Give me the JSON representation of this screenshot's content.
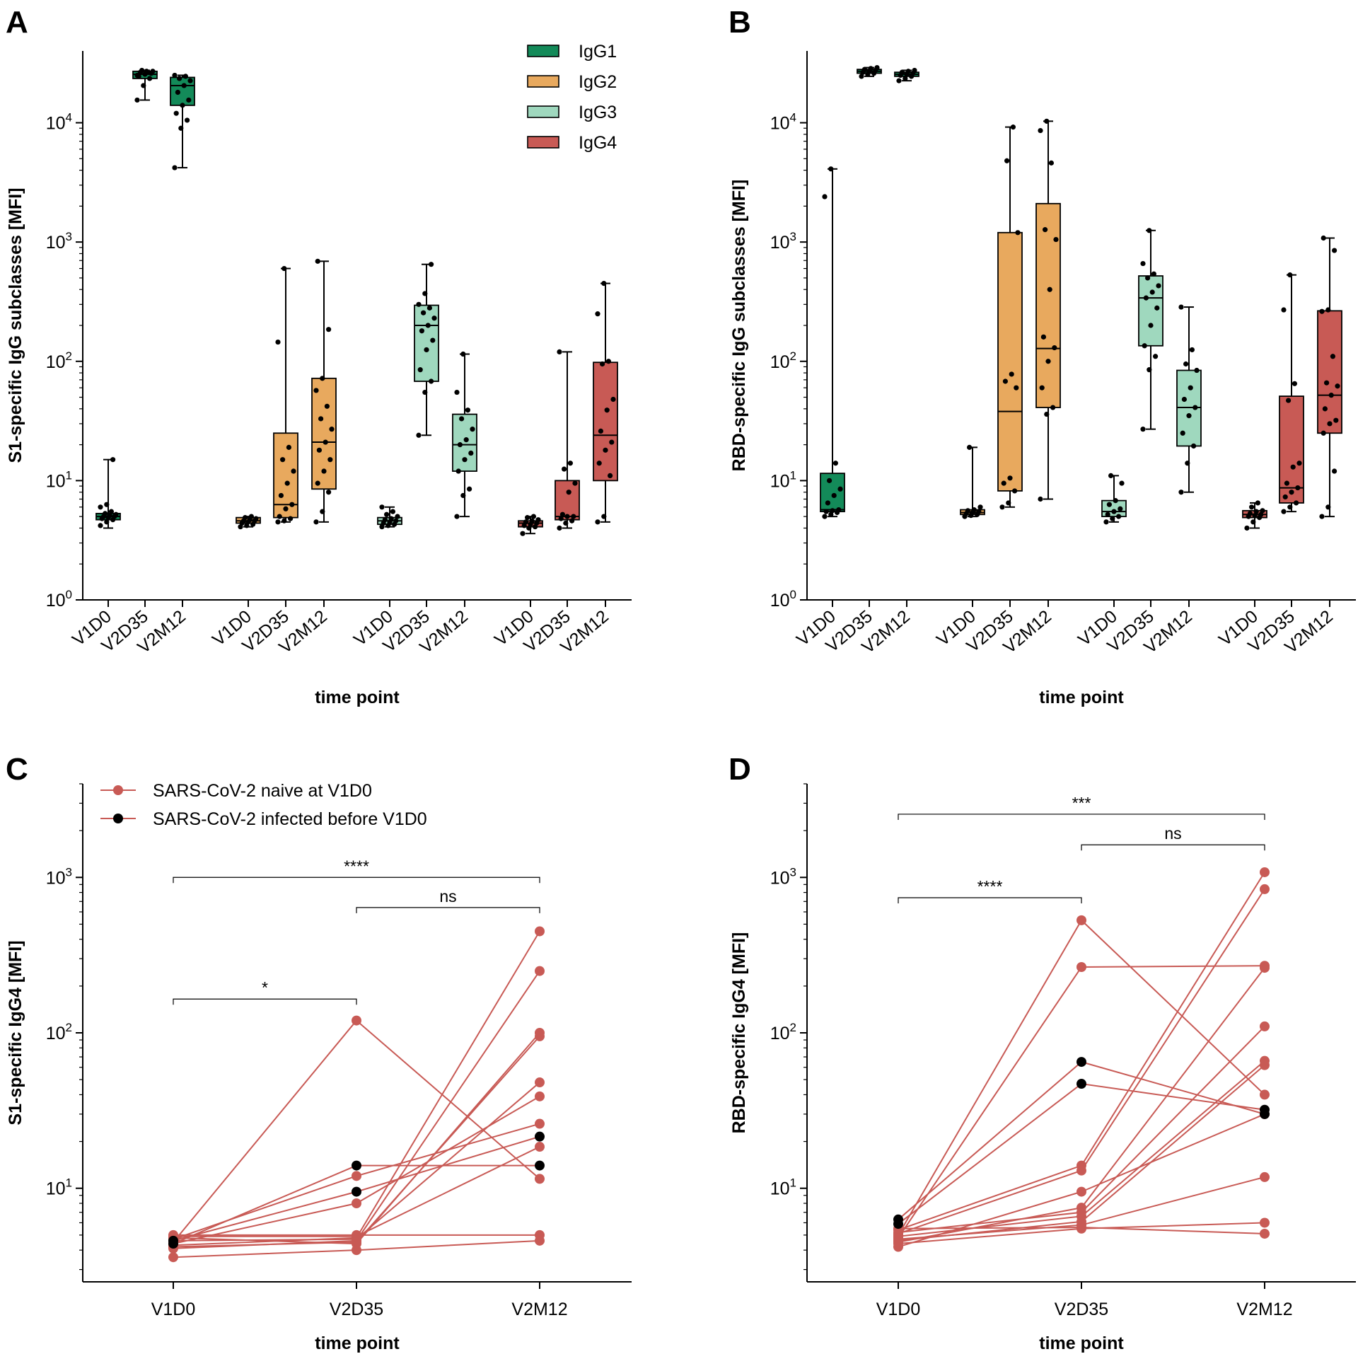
{
  "chart_data": [
    {
      "panel": "A",
      "type": "box",
      "ylabel": "S1-specific IgG subclasses [MFI]",
      "xlabel": "time point",
      "yscale": "log",
      "ylim": [
        1,
        40000
      ],
      "yticks": [
        {
          "value": 1,
          "base": "10",
          "exp": "0"
        },
        {
          "value": 10,
          "base": "10",
          "exp": "1"
        },
        {
          "value": 100,
          "base": "10",
          "exp": "2"
        },
        {
          "value": 1000,
          "base": "10",
          "exp": "3"
        },
        {
          "value": 10000,
          "base": "10",
          "exp": "4"
        }
      ],
      "categories": [
        "V1D0",
        "V2D35",
        "V2M12",
        "V1D0",
        "V2D35",
        "V2M12",
        "V1D0",
        "V2D35",
        "V2M12",
        "V1D0",
        "V2D35",
        "V2M12"
      ],
      "legend": [
        {
          "name": "IgG1",
          "color": "#138a59"
        },
        {
          "name": "IgG2",
          "color": "#e8a95e"
        },
        {
          "name": "IgG3",
          "color": "#9fd8be"
        },
        {
          "name": "IgG4",
          "color": "#c85a55"
        }
      ],
      "boxes": [
        {
          "group": "IgG1",
          "category": "V1D0",
          "min": 4.0,
          "q1": 4.7,
          "median": 5.0,
          "q3": 5.3,
          "max": 15,
          "points": [
            4.2,
            4.5,
            4.7,
            4.8,
            4.9,
            5.0,
            5.0,
            5.1,
            5.2,
            5.3,
            5.5,
            6.0,
            6.3,
            15
          ]
        },
        {
          "group": "IgG1",
          "category": "V2D35",
          "min": 15500,
          "q1": 23500,
          "median": 25500,
          "q3": 27000,
          "max": 27500,
          "points": [
            15500,
            20500,
            23500,
            24500,
            25500,
            26000,
            26500,
            27000,
            27000,
            27500,
            26500,
            25000
          ]
        },
        {
          "group": "IgG1",
          "category": "V2M12",
          "min": 4200,
          "q1": 14000,
          "median": 20500,
          "q3": 24000,
          "max": 25000,
          "points": [
            4200,
            9000,
            10500,
            12000,
            14000,
            15500,
            18000,
            20500,
            22500,
            23500,
            24500,
            25000
          ]
        },
        {
          "group": "IgG2",
          "category": "V1D0",
          "min": 4.1,
          "q1": 4.4,
          "median": 4.6,
          "q3": 4.9,
          "max": 5.0,
          "points": [
            4.1,
            4.2,
            4.3,
            4.4,
            4.5,
            4.6,
            4.6,
            4.7,
            4.8,
            4.9,
            5.0
          ]
        },
        {
          "group": "IgG2",
          "category": "V2D35",
          "min": 4.5,
          "q1": 4.9,
          "median": 6.3,
          "q3": 25,
          "max": 600,
          "points": [
            4.5,
            4.6,
            4.8,
            5.0,
            5.8,
            6.3,
            7.5,
            9.5,
            12,
            15,
            19,
            145,
            600
          ]
        },
        {
          "group": "IgG2",
          "category": "V2M12",
          "min": 4.5,
          "q1": 8.5,
          "median": 21,
          "q3": 72,
          "max": 690,
          "points": [
            4.5,
            5.5,
            8.0,
            9.5,
            12,
            15,
            18,
            21,
            27,
            33,
            42,
            57,
            72,
            185,
            690
          ]
        },
        {
          "group": "IgG3",
          "category": "V1D0",
          "min": 4.1,
          "q1": 4.3,
          "median": 4.6,
          "q3": 4.9,
          "max": 6.0,
          "points": [
            4.1,
            4.2,
            4.3,
            4.4,
            4.5,
            4.6,
            4.7,
            4.8,
            5.0,
            5.2,
            5.5,
            6.0
          ]
        },
        {
          "group": "IgG3",
          "category": "V2D35",
          "min": 24,
          "q1": 68,
          "median": 200,
          "q3": 295,
          "max": 650,
          "points": [
            24,
            55,
            68,
            85,
            125,
            150,
            180,
            200,
            230,
            255,
            280,
            300,
            370,
            650
          ]
        },
        {
          "group": "IgG3",
          "category": "V2M12",
          "min": 5.0,
          "q1": 12,
          "median": 20,
          "q3": 36,
          "max": 115,
          "points": [
            5.0,
            7.5,
            8.5,
            12,
            15,
            17,
            20,
            22,
            27,
            33,
            39,
            55,
            115
          ]
        },
        {
          "group": "IgG4",
          "category": "V1D0",
          "min": 3.6,
          "q1": 4.1,
          "median": 4.4,
          "q3": 4.6,
          "max": 5.0,
          "points": [
            3.6,
            4.0,
            4.1,
            4.2,
            4.3,
            4.4,
            4.5,
            4.6,
            4.7,
            4.9,
            5.0
          ]
        },
        {
          "group": "IgG4",
          "category": "V2D35",
          "min": 4.0,
          "q1": 4.7,
          "median": 5.0,
          "q3": 10,
          "max": 120,
          "points": [
            4.0,
            4.4,
            4.6,
            4.8,
            5.0,
            5.0,
            5.2,
            8.0,
            9.5,
            12.5,
            14,
            120
          ]
        },
        {
          "group": "IgG4",
          "category": "V2M12",
          "min": 4.5,
          "q1": 10,
          "median": 24,
          "q3": 98,
          "max": 450,
          "points": [
            4.5,
            5.0,
            11,
            14,
            18,
            21,
            26,
            39,
            48,
            95,
            100,
            250,
            450
          ]
        }
      ]
    },
    {
      "panel": "B",
      "type": "box",
      "ylabel": "RBD-specific IgG subclasses [MFI]",
      "xlabel": "time point",
      "yscale": "log",
      "ylim": [
        1,
        40000
      ],
      "yticks": [
        {
          "value": 1,
          "base": "10",
          "exp": "0"
        },
        {
          "value": 10,
          "base": "10",
          "exp": "1"
        },
        {
          "value": 100,
          "base": "10",
          "exp": "2"
        },
        {
          "value": 1000,
          "base": "10",
          "exp": "3"
        },
        {
          "value": 10000,
          "base": "10",
          "exp": "4"
        }
      ],
      "categories": [
        "V1D0",
        "V2D35",
        "V2M12",
        "V1D0",
        "V2D35",
        "V2M12",
        "V1D0",
        "V2D35",
        "V2M12",
        "V1D0",
        "V2D35",
        "V2M12"
      ],
      "boxes": [
        {
          "group": "IgG1",
          "category": "V1D0",
          "min": 5.0,
          "q1": 5.5,
          "median": 5.7,
          "q3": 11.5,
          "max": 4100,
          "points": [
            5.0,
            5.2,
            5.4,
            5.5,
            5.6,
            5.7,
            6.5,
            7.5,
            8.5,
            10,
            14,
            2400,
            4100
          ]
        },
        {
          "group": "IgG1",
          "category": "V2D35",
          "min": 24500,
          "q1": 26000,
          "median": 27000,
          "q3": 28000,
          "max": 29000,
          "points": [
            24500,
            25500,
            26000,
            26500,
            27000,
            27500,
            28000,
            28500,
            29000
          ]
        },
        {
          "group": "IgG1",
          "category": "V2M12",
          "min": 22500,
          "q1": 24500,
          "median": 25500,
          "q3": 26500,
          "max": 27500,
          "points": [
            22500,
            23500,
            24500,
            25000,
            25500,
            26000,
            26500,
            27000,
            27500
          ]
        },
        {
          "group": "IgG2",
          "category": "V1D0",
          "min": 5.0,
          "q1": 5.2,
          "median": 5.4,
          "q3": 5.7,
          "max": 19,
          "points": [
            5.0,
            5.1,
            5.2,
            5.3,
            5.4,
            5.5,
            5.6,
            5.7,
            6.0,
            19
          ]
        },
        {
          "group": "IgG2",
          "category": "V2D35",
          "min": 6.0,
          "q1": 8.2,
          "median": 38,
          "q3": 1200,
          "max": 9200,
          "points": [
            6.0,
            6.5,
            8.2,
            9.5,
            10.5,
            60,
            68,
            78,
            1200,
            4800,
            9200
          ]
        },
        {
          "group": "IgG2",
          "category": "V2M12",
          "min": 7.0,
          "q1": 41,
          "median": 128,
          "q3": 2100,
          "max": 10300,
          "points": [
            7.0,
            36,
            41,
            60,
            100,
            130,
            160,
            400,
            1050,
            1270,
            4600,
            8600,
            10300
          ]
        },
        {
          "group": "IgG3",
          "category": "V1D0",
          "min": 4.5,
          "q1": 5.0,
          "median": 5.5,
          "q3": 6.8,
          "max": 11,
          "points": [
            4.5,
            4.8,
            5.0,
            5.2,
            5.5,
            5.8,
            6.3,
            6.8,
            9.5,
            11
          ]
        },
        {
          "group": "IgG3",
          "category": "V2D35",
          "min": 27,
          "q1": 135,
          "median": 340,
          "q3": 520,
          "max": 1250,
          "points": [
            27,
            85,
            110,
            135,
            200,
            280,
            340,
            380,
            430,
            500,
            540,
            660,
            1250
          ]
        },
        {
          "group": "IgG3",
          "category": "V2M12",
          "min": 8.0,
          "q1": 19.5,
          "median": 41,
          "q3": 84,
          "max": 285,
          "points": [
            8.0,
            14,
            19.5,
            25,
            35,
            41,
            48,
            60,
            84,
            95,
            125,
            285
          ]
        },
        {
          "group": "IgG4",
          "category": "V1D0",
          "min": 4.0,
          "q1": 4.9,
          "median": 5.2,
          "q3": 5.6,
          "max": 6.5,
          "points": [
            4.0,
            4.5,
            4.9,
            5.0,
            5.1,
            5.2,
            5.3,
            5.5,
            5.6,
            6.0,
            6.5
          ]
        },
        {
          "group": "IgG4",
          "category": "V2D35",
          "min": 5.5,
          "q1": 6.5,
          "median": 8.7,
          "q3": 51,
          "max": 530,
          "points": [
            5.5,
            6.0,
            6.5,
            7.3,
            8.0,
            8.7,
            9.5,
            13,
            14,
            47,
            65,
            270,
            530
          ]
        },
        {
          "group": "IgG4",
          "category": "V2M12",
          "min": 5.0,
          "q1": 25,
          "median": 52,
          "q3": 265,
          "max": 1080,
          "points": [
            5.0,
            6.0,
            12,
            25,
            30,
            32,
            40,
            52,
            62,
            66,
            110,
            262,
            270,
            850,
            1080
          ]
        }
      ]
    },
    {
      "panel": "C",
      "type": "line",
      "ylabel": "S1-specific IgG4 [MFI]",
      "xlabel": "time point",
      "yscale": "log",
      "ylim": [
        2.5,
        4000
      ],
      "yticks": [
        {
          "value": 10,
          "base": "10",
          "exp": "1"
        },
        {
          "value": 100,
          "base": "10",
          "exp": "2"
        },
        {
          "value": 1000,
          "base": "10",
          "exp": "3"
        }
      ],
      "categories": [
        "V1D0",
        "V2D35",
        "V2M12"
      ],
      "legend": [
        {
          "name": "SARS-CoV-2 naive at V1D0",
          "color": "#c85a55"
        },
        {
          "name": "SARS-CoV-2 infected before V1D0",
          "color": "#000000"
        }
      ],
      "significance": [
        {
          "from": 0,
          "to": 2,
          "label": "****",
          "y": 1000
        },
        {
          "from": 1,
          "to": 2,
          "label": "ns",
          "y": 640
        },
        {
          "from": 0,
          "to": 1,
          "label": "*",
          "y": 165
        }
      ],
      "series": [
        {
          "group": "naive",
          "values": [
            4.5,
            120,
            11.5
          ]
        },
        {
          "group": "naive",
          "values": [
            4.3,
            4.8,
            450
          ]
        },
        {
          "group": "naive",
          "values": [
            4.1,
            4.6,
            250
          ]
        },
        {
          "group": "naive",
          "values": [
            4.8,
            4.4,
            100
          ]
        },
        {
          "group": "naive",
          "values": [
            4.2,
            4.5,
            95
          ]
        },
        {
          "group": "naive",
          "values": [
            4.6,
            4.7,
            48
          ]
        },
        {
          "group": "naive",
          "values": [
            4.4,
            8.0,
            39
          ]
        },
        {
          "group": "naive",
          "values": [
            4.7,
            12.0,
            26
          ]
        },
        {
          "group": "naive",
          "values": [
            4.9,
            4.9,
            18.5
          ]
        },
        {
          "group": "naive",
          "values": [
            5.0,
            5.0,
            5.0
          ]
        },
        {
          "group": "naive",
          "values": [
            3.6,
            4.0,
            4.6
          ]
        },
        {
          "group": "infected",
          "values": [
            4.4,
            14,
            14
          ]
        },
        {
          "group": "infected",
          "values": [
            4.6,
            9.5,
            21.5
          ]
        }
      ]
    },
    {
      "panel": "D",
      "type": "line",
      "ylabel": "RBD-specific IgG4 [MFI]",
      "xlabel": "time point",
      "yscale": "log",
      "ylim": [
        2.5,
        4000
      ],
      "yticks": [
        {
          "value": 10,
          "base": "10",
          "exp": "1"
        },
        {
          "value": 100,
          "base": "10",
          "exp": "2"
        },
        {
          "value": 1000,
          "base": "10",
          "exp": "3"
        }
      ],
      "categories": [
        "V1D0",
        "V2D35",
        "V2M12"
      ],
      "significance": [
        {
          "from": 0,
          "to": 2,
          "label": "***",
          "y": 2550
        },
        {
          "from": 1,
          "to": 2,
          "label": "ns",
          "y": 1620
        },
        {
          "from": 0,
          "to": 1,
          "label": "****",
          "y": 740
        }
      ],
      "series": [
        {
          "group": "naive",
          "values": [
            5.0,
            530,
            40
          ]
        },
        {
          "group": "naive",
          "values": [
            4.8,
            265,
            270
          ]
        },
        {
          "group": "naive",
          "values": [
            5.4,
            14,
            1080
          ]
        },
        {
          "group": "naive",
          "values": [
            5.1,
            13,
            840
          ]
        },
        {
          "group": "naive",
          "values": [
            4.5,
            7.5,
            262
          ]
        },
        {
          "group": "naive",
          "values": [
            5.2,
            7.0,
            110
          ]
        },
        {
          "group": "naive",
          "values": [
            4.9,
            6.6,
            66
          ]
        },
        {
          "group": "naive",
          "values": [
            4.6,
            6.1,
            62
          ]
        },
        {
          "group": "naive",
          "values": [
            4.2,
            9.5,
            30
          ]
        },
        {
          "group": "naive",
          "values": [
            4.7,
            5.8,
            11.8
          ]
        },
        {
          "group": "naive",
          "values": [
            4.4,
            5.5,
            6.0
          ]
        },
        {
          "group": "naive",
          "values": [
            5.5,
            5.6,
            5.1
          ]
        },
        {
          "group": "infected",
          "values": [
            6.3,
            65,
            30
          ]
        },
        {
          "group": "infected",
          "values": [
            5.9,
            47,
            32
          ]
        }
      ]
    }
  ]
}
